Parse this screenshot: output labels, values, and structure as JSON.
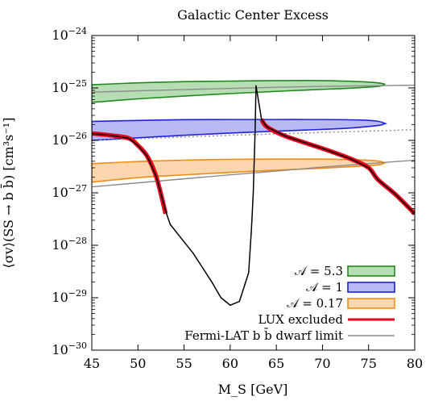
{
  "chart_data": {
    "type": "line",
    "title": "Galactic Center Excess",
    "xlabel": "M_S [GeV]",
    "ylabel": "⟨σv⟩(SS → b b̄) [cm³s⁻¹]",
    "xlim": [
      45,
      80
    ],
    "ylim": [
      1e-30,
      1e-24
    ],
    "yscale": "log",
    "x_ticks": [
      45,
      50,
      55,
      60,
      65,
      70,
      75,
      80
    ],
    "y_ticks": [
      {
        "value": 1e-30,
        "base": "10",
        "exp": "−30"
      },
      {
        "value": 1e-29,
        "base": "10",
        "exp": "−29"
      },
      {
        "value": 1e-28,
        "base": "10",
        "exp": "−28"
      },
      {
        "value": 1e-27,
        "base": "10",
        "exp": "−27"
      },
      {
        "value": 1e-26,
        "base": "10",
        "exp": "−26"
      },
      {
        "value": 1e-25,
        "base": "10",
        "exp": "−25"
      },
      {
        "value": 1e-24,
        "base": "10",
        "exp": "−24"
      }
    ],
    "grid": false,
    "legend_position": "bottom-right",
    "regions": [
      {
        "name": "𝒜 = 5.3",
        "fill": "#b7ddb4",
        "stroke": "#1e8a1e",
        "upper": [
          [
            45,
            1.15e-25
          ],
          [
            50,
            1.25e-25
          ],
          [
            55,
            1.32e-25
          ],
          [
            60,
            1.35e-25
          ],
          [
            65,
            1.38e-25
          ],
          [
            70,
            1.38e-25
          ],
          [
            74,
            1.32e-25
          ],
          [
            76,
            1.25e-25
          ],
          [
            76.8,
            1.18e-25
          ]
        ],
        "lower": [
          [
            76.8,
            1.18e-25
          ],
          [
            76,
            1.07e-25
          ],
          [
            73,
            9.9e-26
          ],
          [
            70,
            9.4e-26
          ],
          [
            65,
            8.6e-26
          ],
          [
            60,
            7.8e-26
          ],
          [
            55,
            7e-26
          ],
          [
            50,
            6.2e-26
          ],
          [
            45,
            5.3e-26
          ]
        ]
      },
      {
        "name": "𝒜 = 1",
        "fill": "#b8b8f2",
        "stroke": "#2020dd",
        "upper": [
          [
            45,
            2.3e-26
          ],
          [
            50,
            2.4e-26
          ],
          [
            55,
            2.48e-26
          ],
          [
            60,
            2.5e-26
          ],
          [
            65,
            2.5e-26
          ],
          [
            70,
            2.5e-26
          ],
          [
            74,
            2.45e-26
          ],
          [
            76,
            2.32e-26
          ],
          [
            76.8,
            2.1e-26
          ]
        ],
        "lower": [
          [
            76.8,
            2.1e-26
          ],
          [
            76,
            1.92e-26
          ],
          [
            73,
            1.72e-26
          ],
          [
            70,
            1.62e-26
          ],
          [
            65,
            1.5e-26
          ],
          [
            60,
            1.38e-26
          ],
          [
            55,
            1.25e-26
          ],
          [
            50,
            1.12e-26
          ],
          [
            45,
            1e-26
          ]
        ]
      },
      {
        "name": "𝒜 = 0.17",
        "fill": "#fcd6ae",
        "stroke": "#f08c14",
        "upper": [
          [
            45,
            3.6e-27
          ],
          [
            50,
            3.95e-27
          ],
          [
            55,
            4.2e-27
          ],
          [
            60,
            4.35e-27
          ],
          [
            65,
            4.4e-27
          ],
          [
            70,
            4.4e-27
          ],
          [
            74,
            4.25e-27
          ],
          [
            76,
            4.05e-27
          ],
          [
            76.8,
            3.75e-27
          ]
        ],
        "lower": [
          [
            76.8,
            3.75e-27
          ],
          [
            76,
            3.4e-27
          ],
          [
            73,
            3.15e-27
          ],
          [
            70,
            2.95e-27
          ],
          [
            65,
            2.7e-27
          ],
          [
            60,
            2.45e-27
          ],
          [
            55,
            2.2e-27
          ],
          [
            50,
            1.95e-27
          ],
          [
            45,
            1.6e-27
          ]
        ]
      }
    ],
    "series": [
      {
        "name": "",
        "color": "#000000",
        "points": [
          [
            45,
            1.35e-26
          ],
          [
            47,
            1.25e-26
          ],
          [
            49,
            1.1e-26
          ],
          [
            50,
            8e-27
          ],
          [
            51,
            5e-27
          ],
          [
            52,
            2e-27
          ],
          [
            53,
            4.5e-28
          ],
          [
            53.5,
            2.5e-28
          ],
          [
            54.5,
            1.5e-28
          ],
          [
            56,
            7e-29
          ],
          [
            58,
            2e-29
          ],
          [
            59,
            1e-29
          ],
          [
            60,
            7.2e-30
          ],
          [
            61,
            8.5e-30
          ],
          [
            62,
            3e-29
          ],
          [
            62.3,
            2e-28
          ],
          [
            62.5,
            1e-27
          ],
          [
            62.7,
            1.5e-26
          ],
          [
            62.8,
            1.1e-25
          ],
          [
            63.4,
            2.5e-26
          ],
          [
            64,
            1.8e-26
          ],
          [
            66,
            1.2e-26
          ],
          [
            70,
            7e-27
          ],
          [
            73,
            4.5e-27
          ],
          [
            75,
            3e-27
          ],
          [
            76,
            1.8e-27
          ],
          [
            78,
            9e-28
          ],
          [
            80,
            4e-28
          ]
        ]
      },
      {
        "name": "LUX excluded",
        "color": "#e8001a",
        "segments": [
          [
            [
              45,
              1.35e-26
            ],
            [
              47,
              1.25e-26
            ],
            [
              49,
              1.1e-26
            ],
            [
              50,
              8e-27
            ],
            [
              51,
              5e-27
            ],
            [
              52,
              2e-27
            ],
            [
              53,
              4e-28
            ]
          ],
          [
            [
              63.4,
              2.5e-26
            ],
            [
              64,
              1.8e-26
            ],
            [
              66,
              1.2e-26
            ],
            [
              70,
              7e-27
            ],
            [
              73,
              4.5e-27
            ],
            [
              75,
              3e-27
            ],
            [
              76,
              1.8e-27
            ],
            [
              78,
              9e-28
            ],
            [
              80,
              4e-28
            ]
          ]
        ]
      },
      {
        "name": "Fermi-LAT b b̄ dwarf limit",
        "color": "#8c8c8c",
        "points": [
          [
            45,
            1.3e-27
          ],
          [
            50,
            1.55e-27
          ],
          [
            55,
            1.85e-27
          ],
          [
            60,
            2.2e-27
          ],
          [
            65,
            2.6e-27
          ],
          [
            70,
            3.1e-27
          ],
          [
            75,
            3.6e-27
          ],
          [
            80,
            4.2e-27
          ]
        ],
        "points_upper": [
          [
            45,
            8.3e-26
          ],
          [
            50,
            8.8e-26
          ],
          [
            55,
            9.3e-26
          ],
          [
            60,
            9.8e-26
          ],
          [
            65,
            1.03e-25
          ],
          [
            70,
            1.07e-25
          ],
          [
            75,
            1.1e-25
          ],
          [
            80,
            1.13e-25
          ]
        ],
        "points_mid_dotted": [
          [
            45,
            1e-26
          ],
          [
            50,
            1.08e-26
          ],
          [
            55,
            1.16e-26
          ],
          [
            60,
            1.25e-26
          ],
          [
            65,
            1.33e-26
          ],
          [
            70,
            1.42e-26
          ],
          [
            75,
            1.5e-26
          ],
          [
            80,
            1.6e-26
          ]
        ]
      }
    ],
    "legend": [
      {
        "label": "𝒜 = 5.3",
        "kind": "box",
        "fill": "#b7ddb4",
        "stroke": "#1e8a1e"
      },
      {
        "label": "𝒜 = 1",
        "kind": "box",
        "fill": "#b8b8f2",
        "stroke": "#2020dd"
      },
      {
        "label": "𝒜 = 0.17",
        "kind": "box",
        "fill": "#fcd6ae",
        "stroke": "#f08c14"
      },
      {
        "label": "LUX excluded",
        "kind": "line",
        "stroke": "#e8001a"
      },
      {
        "label": "Fermi-LAT b b̄ dwarf limit",
        "kind": "line",
        "stroke": "#8c8c8c"
      }
    ]
  }
}
